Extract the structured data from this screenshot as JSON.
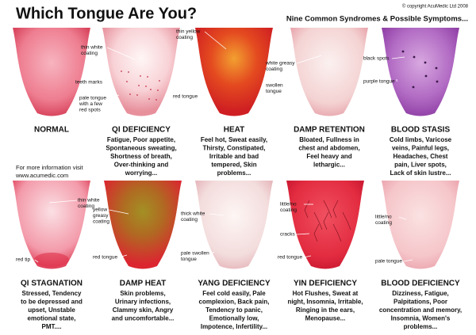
{
  "header": {
    "title": "Which Tongue Are You?",
    "copyright": "© copyright AcuMedic Ltd 2008",
    "subtitle": "Nine Common Syndromes & Possible Symptoms..."
  },
  "info": {
    "lines": [
      "For more information visit",
      "www.acumedic.com"
    ]
  },
  "tongues": [
    {
      "name": "NORMAL"
    },
    {
      "name": "QI DEFICIENCY",
      "description": [
        "Fatigue, Poor appetite,",
        "Spontaneous sweating,",
        "Shortness of breath,",
        "Over-thinking and",
        "worrying..."
      ],
      "annotations": [
        {
          "lines": [
            "thin white",
            "coating"
          ]
        },
        {
          "lines": [
            "teeth marks"
          ]
        },
        {
          "lines": [
            "pale tongue",
            "with a few",
            "red spots"
          ]
        }
      ]
    },
    {
      "name": "HEAT",
      "description": [
        "Feel hot, Sweat easily,",
        "Thirsty, Constipated,",
        "Irritable and bad",
        "tempered, Skin",
        "problems..."
      ],
      "annotations": [
        {
          "lines": [
            "thin yellow",
            "coating"
          ]
        },
        {
          "lines": [
            "red tongue"
          ]
        }
      ]
    },
    {
      "name": "DAMP RETENTION",
      "description": [
        "Bloated, Fullness in",
        "chest and abdomen,",
        "Feel heavy and",
        "lethargic..."
      ],
      "annotations": [
        {
          "lines": [
            "white greasy",
            "coating"
          ]
        },
        {
          "lines": [
            "swollen",
            "tongue"
          ]
        }
      ]
    },
    {
      "name": "BLOOD STASIS",
      "description": [
        "Cold limbs, Varicose",
        "veins, Painful legs,",
        "Headaches, Chest",
        "pain, Liver spots,",
        "Lack of skin lustre..."
      ],
      "annotations": [
        {
          "lines": [
            "black spots"
          ]
        },
        {
          "lines": [
            "purple tongue"
          ]
        }
      ]
    },
    {
      "name": "QI STAGNATION",
      "description": [
        "Stressed, Tendency",
        "to be depressed and",
        "upset, Unstable",
        "emotional state,",
        "PMT...."
      ],
      "annotations": [
        {
          "lines": [
            "thin white",
            "coating"
          ]
        },
        {
          "lines": [
            "red tip"
          ]
        }
      ]
    },
    {
      "name": "DAMP HEAT",
      "description": [
        "Skin problems,",
        "Urinary infections,",
        "Clammy skin, Angry",
        "and uncomfortable..."
      ],
      "annotations": [
        {
          "lines": [
            "yellow",
            "greasy",
            "coating"
          ]
        },
        {
          "lines": [
            "red tongue"
          ]
        }
      ]
    },
    {
      "name": "YANG DEFICIENCY",
      "description": [
        "Feel cold easily, Pale",
        "complexion, Back pain,",
        "Tendency to panic,",
        "Emotionally low,",
        "Impotence, Infertility..."
      ],
      "annotations": [
        {
          "lines": [
            "thick white",
            "coating"
          ]
        },
        {
          "lines": [
            "pale swollen",
            "tongue"
          ]
        }
      ]
    },
    {
      "name": "YIN DEFICIENCY",
      "description": [
        "Hot Flushes, Sweat at",
        "night, Insomnia, Irritable,",
        "Ringing in the ears,",
        "Menopause..."
      ],
      "annotations": [
        {
          "lines": [
            "little/no",
            "coating"
          ]
        },
        {
          "lines": [
            "cracks"
          ]
        },
        {
          "lines": [
            "red tongue"
          ]
        }
      ]
    },
    {
      "name": "BLOOD DEFICIENCY",
      "description": [
        "Dizziness, Fatigue,",
        "Palpitations, Poor",
        "concentration and memory,",
        "Insomnia, Women's",
        "problems..."
      ],
      "annotations": [
        {
          "lines": [
            "little/no",
            "coating"
          ]
        },
        {
          "lines": [
            "pale tongue"
          ]
        }
      ]
    }
  ]
}
